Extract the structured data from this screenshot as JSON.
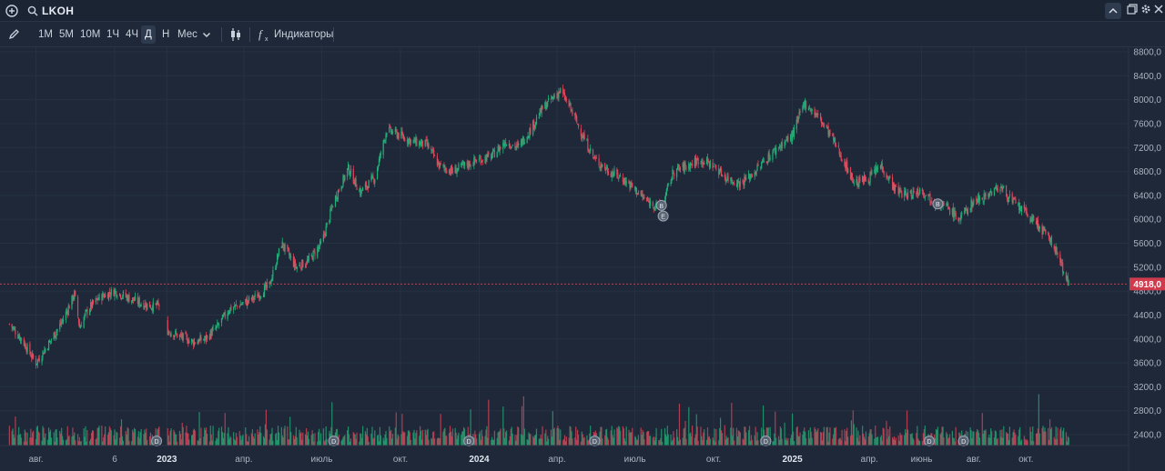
{
  "header": {
    "ticker": "LKOH"
  },
  "toolbar": {
    "timeframes": [
      "1M",
      "5M",
      "10M",
      "1Ч",
      "4Ч",
      "Д",
      "Н",
      "Мес"
    ],
    "active_timeframe": "Д",
    "indicators_label": "Индикаторы"
  },
  "colors": {
    "background": "#1e2838",
    "up": "#22b07a",
    "down": "#e0455b",
    "price_line": "#d03a4d",
    "badge_bg": "#5a6472"
  },
  "chart_data": {
    "type": "candlestick",
    "series": [
      {
        "name": "LKOH",
        "ohlc_resolution": "Д",
        "x": [
          "2022-07-01",
          "2022-07-15",
          "2022-08-01",
          "2022-08-15",
          "2022-09-01",
          "2022-09-15",
          "2022-09-21",
          "2022-10-01",
          "2022-10-15",
          "2022-11-01",
          "2022-11-15",
          "2022-12-01",
          "2022-12-15",
          "2022-12-23",
          "2023-01-01",
          "2023-01-15",
          "2023-02-01",
          "2023-02-15",
          "2023-03-01",
          "2023-03-15",
          "2023-04-01",
          "2023-04-15",
          "2023-05-01",
          "2023-05-15",
          "2023-06-01",
          "2023-06-15",
          "2023-07-01",
          "2023-07-15",
          "2023-08-01",
          "2023-08-15",
          "2023-09-01",
          "2023-09-15",
          "2023-10-01",
          "2023-10-15",
          "2023-11-01",
          "2023-11-15",
          "2023-12-01",
          "2023-12-15",
          "2024-01-01",
          "2024-01-15",
          "2024-02-01",
          "2024-02-15",
          "2024-03-01",
          "2024-03-15",
          "2024-04-01",
          "2024-04-05",
          "2024-04-15",
          "2024-05-01",
          "2024-05-15",
          "2024-06-01",
          "2024-06-15",
          "2024-07-01",
          "2024-07-15",
          "2024-08-01",
          "2024-08-15",
          "2024-09-01",
          "2024-09-15",
          "2024-10-01",
          "2024-10-15",
          "2024-11-01",
          "2024-11-15",
          "2024-12-01",
          "2024-12-15",
          "2025-01-01",
          "2025-01-15",
          "2025-02-01",
          "2025-02-15",
          "2025-03-01",
          "2025-03-15",
          "2025-04-01",
          "2025-04-15",
          "2025-05-01",
          "2025-05-15",
          "2025-06-01",
          "2025-06-15",
          "2025-07-01",
          "2025-07-15",
          "2025-08-01",
          "2025-08-15",
          "2025-09-01",
          "2025-09-15",
          "2025-10-01",
          "2025-10-15",
          "2025-11-01",
          "2025-11-10",
          "2025-11-20"
        ],
        "close": [
          4250,
          4000,
          3600,
          3900,
          4300,
          4750,
          4200,
          4500,
          4700,
          4800,
          4700,
          4600,
          4550,
          4560,
          4150,
          4050,
          3950,
          4000,
          4200,
          4500,
          4600,
          4700,
          4900,
          5600,
          5200,
          5300,
          5600,
          6300,
          6850,
          6450,
          6700,
          7500,
          7400,
          7300,
          7250,
          6900,
          6800,
          6900,
          7000,
          7050,
          7300,
          7200,
          7500,
          7850,
          8100,
          8150,
          7900,
          7400,
          7000,
          6800,
          6700,
          6500,
          6300,
          6200,
          6800,
          6900,
          7000,
          6900,
          6700,
          6600,
          6750,
          7000,
          7200,
          7400,
          7950,
          7700,
          7400,
          7000,
          6600,
          6700,
          6900,
          6500,
          6400,
          6500,
          6300,
          6200,
          6000,
          6300,
          6400,
          6550,
          6300,
          6100,
          5900,
          5600,
          5300,
          4918
        ]
      }
    ],
    "volume": [
      {
        "x": "2022-07-01",
        "value": 3
      }
    ],
    "y_ticks": [
      "8800,0",
      "8400,0",
      "8000,0",
      "7600,0",
      "7200,0",
      "6800,0",
      "6400,0",
      "6000,0",
      "5600,0",
      "5200,0",
      "4800,0",
      "4400,0",
      "4000,0",
      "3600,0",
      "3200,0",
      "2800,0",
      "2400,0"
    ],
    "x_ticks": [
      {
        "label": "авг.",
        "year": false
      },
      {
        "label": "6",
        "year": false
      },
      {
        "label": "2023",
        "year": true
      },
      {
        "label": "апр.",
        "year": false
      },
      {
        "label": "июль",
        "year": false
      },
      {
        "label": "окт.",
        "year": false
      },
      {
        "label": "2024",
        "year": true
      },
      {
        "label": "апр.",
        "year": false
      },
      {
        "label": "июль",
        "year": false
      },
      {
        "label": "окт.",
        "year": false
      },
      {
        "label": "2025",
        "year": true
      },
      {
        "label": "апр.",
        "year": false
      },
      {
        "label": "июнь",
        "year": false
      },
      {
        "label": "авг.",
        "year": false
      },
      {
        "label": "окт.",
        "year": false
      }
    ],
    "current_price_label": "4918,0",
    "current_price": 4918,
    "ylim": [
      2400,
      8800
    ],
    "grid": true,
    "markers": [
      {
        "type": "D",
        "x": "2022-12-20"
      },
      {
        "type": "D",
        "x": "2023-07-15"
      },
      {
        "type": "D",
        "x": "2023-12-20"
      },
      {
        "type": "D",
        "x": "2024-05-15"
      },
      {
        "type": "D",
        "x": "2024-12-01"
      },
      {
        "type": "D",
        "x": "2025-06-10"
      },
      {
        "type": "B",
        "x": "2024-08-01"
      },
      {
        "type": "E",
        "x": "2024-08-03"
      },
      {
        "type": "B",
        "x": "2025-06-20"
      },
      {
        "type": "D",
        "x": "2025-07-20"
      }
    ]
  }
}
